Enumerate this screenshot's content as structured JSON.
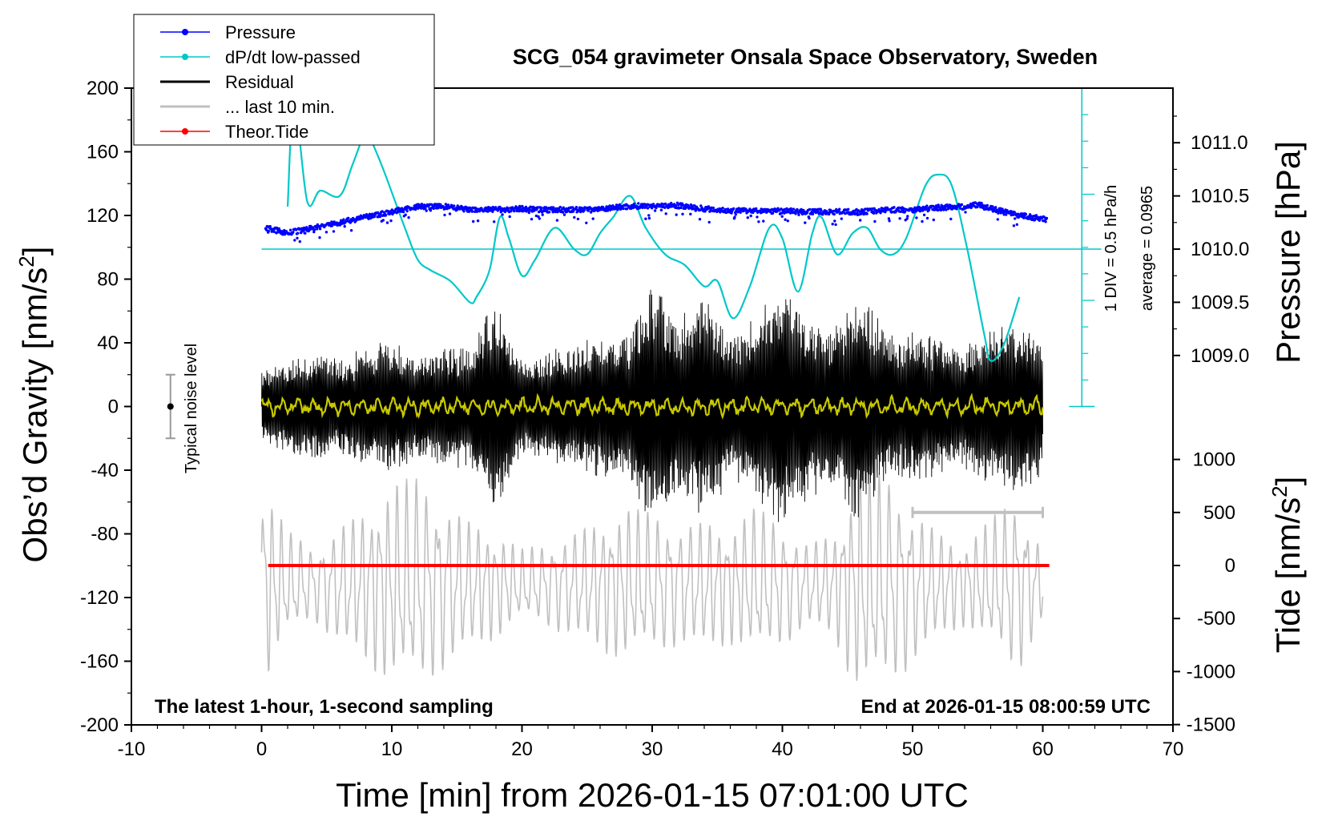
{
  "chart_data": {
    "type": "line",
    "title": "SCG_054 gravimeter Onsala Space Observatory, Sweden",
    "xlabel": "Time [min] from 2026-01-15 07:01:00 UTC",
    "ylabel_left": "Obs’d Gravity [nm/s",
    "ylabel_left_sup": "2",
    "ylabel_left_end": "]",
    "ylabel_right_top": "Pressure [hPa]",
    "ylabel_right_bottom": "Tide [nm/s",
    "ylabel_right_bottom_sup": "2",
    "ylabel_right_bottom_end": "]",
    "xlim": [
      -10,
      70
    ],
    "ylim_left": [
      -200,
      200
    ],
    "ylim_pressure": [
      1008.5,
      1011.5
    ],
    "ylim_tide": [
      -1500,
      1500
    ],
    "x_ticks": [
      "-10",
      "0",
      "10",
      "20",
      "30",
      "40",
      "50",
      "60",
      "70"
    ],
    "y_left_ticks": [
      "200",
      "160",
      "120",
      "80",
      "40",
      "0",
      "-40",
      "-80",
      "-120",
      "-160",
      "-200"
    ],
    "pressure_ticks": [
      "1011.0",
      "1010.5",
      "1010.0",
      "1009.5",
      "1009.0"
    ],
    "tide_ticks": [
      "1000",
      "500",
      "0",
      "-500",
      "-1000",
      "-1500"
    ],
    "dpdt_scale": "1 DIV = 0.5 hPa/h",
    "dpdt_average": "average = 0.0965",
    "noise_label": "Typical noise level",
    "note_left": "The latest 1-hour, 1-second sampling",
    "note_right": "End at 2026-01-15 08:00:59 UTC",
    "colors": {
      "pressure": "#0000ff",
      "dpdt": "#00c8c8",
      "residual": "#000000",
      "last10": "#c0c0c0",
      "tide": "#ff0000",
      "residual_lowpass": "#c8c800"
    },
    "legend": [
      {
        "name": "Pressure",
        "color": "#0000ff",
        "marker": true
      },
      {
        "name": "dP/dt low-passed",
        "color": "#00c8c8",
        "marker": true
      },
      {
        "name": "Residual",
        "color": "#000000",
        "marker": false
      },
      {
        "name": "... last 10 min.",
        "color": "#c0c0c0",
        "marker": false
      },
      {
        "name": "Theor.Tide",
        "color": "#ff0000",
        "marker": true
      }
    ],
    "legend_position": "top-left",
    "series": [
      {
        "id": "pressure",
        "axis": "pressure",
        "x": [
          0.3,
          2,
          4,
          6,
          8,
          10,
          12,
          14,
          16,
          18,
          20,
          22,
          24,
          26,
          28,
          30,
          32,
          34,
          36,
          38,
          40,
          42,
          44,
          46,
          48,
          50,
          52,
          54,
          55,
          56,
          58,
          60.3
        ],
        "values": [
          1010.2,
          1010.15,
          1010.2,
          1010.25,
          1010.3,
          1010.35,
          1010.4,
          1010.4,
          1010.37,
          1010.37,
          1010.38,
          1010.37,
          1010.37,
          1010.38,
          1010.4,
          1010.41,
          1010.41,
          1010.38,
          1010.36,
          1010.36,
          1010.36,
          1010.35,
          1010.35,
          1010.35,
          1010.37,
          1010.37,
          1010.39,
          1010.4,
          1010.42,
          1010.38,
          1010.32,
          1010.28
        ]
      },
      {
        "id": "dpdt",
        "axis": "pressure",
        "x": [
          2,
          2.5,
          3.5,
          4.5,
          6,
          7,
          8,
          8.5,
          9.5,
          11,
          12,
          13,
          14.5,
          16,
          16.5,
          17.5,
          18.3,
          19,
          20,
          21,
          22.5,
          24,
          25,
          26,
          27,
          28.3,
          29.5,
          31,
          32.5,
          34,
          35,
          36.2,
          37.5,
          39,
          40,
          41.2,
          42.3,
          43,
          44.2,
          45.4,
          46.5,
          47.5,
          48.5,
          49.5,
          51,
          52,
          53,
          54.2,
          55.5,
          56,
          57,
          58.2
        ],
        "values": [
          1010.4,
          1011.4,
          1010.45,
          1010.55,
          1010.5,
          1010.8,
          1011.1,
          1011.0,
          1010.7,
          1010.2,
          1009.9,
          1009.8,
          1009.7,
          1009.5,
          1009.55,
          1009.8,
          1010.3,
          1010.1,
          1009.75,
          1009.9,
          1010.2,
          1010.0,
          1009.95,
          1010.15,
          1010.3,
          1010.5,
          1010.2,
          1009.95,
          1009.85,
          1009.65,
          1009.7,
          1009.35,
          1009.65,
          1010.2,
          1010.1,
          1009.6,
          1010.15,
          1010.3,
          1009.95,
          1010.15,
          1010.2,
          1010.0,
          1009.95,
          1010.1,
          1010.6,
          1010.7,
          1010.6,
          1010.0,
          1009.2,
          1008.95,
          1009.1,
          1009.55
        ]
      },
      {
        "id": "residual",
        "axis": "left",
        "x_start": 0,
        "x_end": 60,
        "envelope_x": [
          0,
          2,
          4,
          6,
          8,
          10,
          12,
          14,
          16,
          18,
          20,
          22,
          24,
          26,
          28,
          30,
          32,
          34,
          36,
          38,
          40,
          42,
          44,
          45.5,
          47,
          48.5,
          50,
          52,
          54,
          56,
          58,
          60
        ],
        "envelope": [
          22,
          30,
          35,
          30,
          38,
          42,
          35,
          40,
          38,
          70,
          30,
          35,
          40,
          45,
          45,
          80,
          55,
          75,
          45,
          60,
          75,
          60,
          50,
          75,
          60,
          45,
          50,
          45,
          40,
          50,
          55,
          45
        ]
      },
      {
        "id": "residual_lowpass",
        "axis": "left",
        "x_start": 0,
        "x_end": 60,
        "amplitude": 3
      },
      {
        "id": "last10",
        "axis": "tide",
        "x_start": 0,
        "x_end": 60,
        "envelope_x": [
          0,
          2,
          4,
          6,
          8,
          10,
          12,
          14,
          16,
          18,
          20,
          22,
          24,
          26,
          28,
          30,
          32,
          34,
          36,
          38,
          40,
          42,
          44,
          46,
          48,
          50,
          52,
          54,
          56,
          58,
          60
        ],
        "envelope": [
          900,
          450,
          300,
          500,
          650,
          850,
          900,
          700,
          550,
          450,
          300,
          350,
          450,
          550,
          650,
          600,
          500,
          550,
          500,
          650,
          500,
          350,
          450,
          1000,
          900,
          650,
          450,
          350,
          550,
          750,
          300
        ]
      },
      {
        "id": "tide",
        "axis": "tide",
        "x": [
          0.5,
          60.5
        ],
        "values": [
          0,
          0
        ]
      }
    ],
    "annotations": {
      "last10_bar_x": [
        50,
        60
      ],
      "last10_bar_tide_y": 500,
      "noise_bar_x": -7,
      "noise_bar_y": [
        -20,
        20
      ],
      "pressure_reference": 1010.0,
      "dpdt_scale_axis_x": 63
    },
    "grid": false
  }
}
